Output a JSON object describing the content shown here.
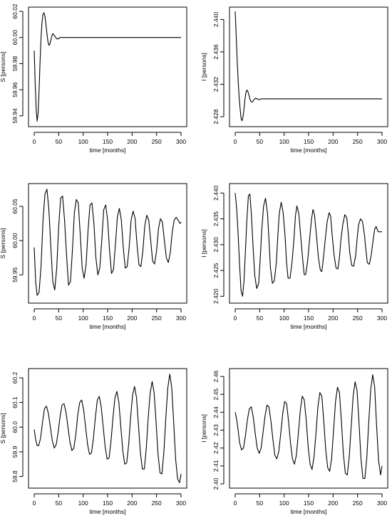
{
  "chart_data": [
    {
      "type": "line",
      "xlabel": "time [months]",
      "ylabel": "S [persons]",
      "xlim": [
        0,
        300
      ],
      "ylim": [
        59.935,
        60.02
      ],
      "xticks": [
        "0",
        "50",
        "100",
        "150",
        "200",
        "250",
        "300"
      ],
      "yticks": [
        "59.94",
        "59.96",
        "59.98",
        "60.00",
        "60.02"
      ],
      "series": [
        {
          "x": [
            0,
            2,
            4,
            6,
            8,
            10,
            12,
            14,
            16,
            18,
            20,
            22,
            24,
            26,
            28,
            30,
            32,
            34,
            36,
            38,
            40,
            42,
            44,
            46,
            48,
            50,
            52,
            54,
            56,
            58,
            60,
            65,
            70,
            75,
            80,
            100,
            150,
            200,
            250,
            300
          ],
          "values": [
            59.99,
            59.965,
            59.945,
            59.936,
            59.942,
            59.96,
            59.982,
            60.0,
            60.012,
            60.018,
            60.019,
            60.016,
            60.01,
            60.003,
            59.997,
            59.994,
            59.995,
            59.998,
            60.001,
            60.003,
            60.002,
            60.001,
            60.0,
            59.999,
            59.999,
            59.999,
            60.0,
            60.0,
            60.0,
            60.0,
            60.0,
            60.0,
            60.0,
            60.0,
            60.0,
            60.0,
            60.0,
            60.0,
            60.0,
            60.0
          ]
        }
      ]
    },
    {
      "type": "line",
      "xlabel": "time [months]",
      "ylabel": "I [persons]",
      "xlim": [
        0,
        300
      ],
      "ylim": [
        2.4273,
        2.441
      ],
      "xticks": [
        "0",
        "50",
        "100",
        "150",
        "200",
        "250",
        "300"
      ],
      "yticks": [
        "2.428",
        "2.432",
        "2.436",
        "2.440"
      ],
      "series": [
        {
          "x": [
            0,
            2,
            4,
            6,
            8,
            10,
            12,
            14,
            16,
            18,
            20,
            22,
            24,
            26,
            28,
            30,
            32,
            34,
            36,
            38,
            40,
            42,
            44,
            46,
            48,
            50,
            52,
            54,
            56,
            58,
            60,
            65,
            70,
            75,
            80,
            100,
            150,
            200,
            250,
            300
          ],
          "values": [
            2.441,
            2.438,
            2.435,
            2.4325,
            2.4305,
            2.429,
            2.4278,
            2.4275,
            2.428,
            2.429,
            2.4302,
            2.431,
            2.4313,
            2.4311,
            2.4307,
            2.4302,
            2.4299,
            2.4298,
            2.4299,
            2.4301,
            2.4302,
            2.4303,
            2.4302,
            2.4302,
            2.4301,
            2.4301,
            2.4302,
            2.4302,
            2.4302,
            2.4302,
            2.4302,
            2.4302,
            2.4302,
            2.4302,
            2.4302,
            2.4302,
            2.4302,
            2.4302,
            2.4302,
            2.4302
          ]
        }
      ]
    },
    {
      "type": "line",
      "xlabel": "time [months]",
      "ylabel": "S [persons]",
      "xlim": [
        0,
        300
      ],
      "ylim": [
        59.915,
        60.077
      ],
      "xticks": [
        "0",
        "50",
        "100",
        "150",
        "200",
        "250",
        "300"
      ],
      "yticks": [
        "59.95",
        "60.00",
        "60.05"
      ],
      "series": [
        {
          "x": [
            0,
            3,
            6,
            10,
            14,
            18,
            22,
            26,
            30,
            34,
            38,
            42,
            46,
            50,
            54,
            58,
            62,
            66,
            70,
            74,
            78,
            82,
            86,
            90,
            94,
            98,
            102,
            106,
            110,
            114,
            118,
            122,
            126,
            130,
            134,
            138,
            142,
            146,
            150,
            154,
            158,
            162,
            166,
            170,
            174,
            178,
            182,
            186,
            190,
            194,
            198,
            202,
            206,
            210,
            214,
            218,
            222,
            226,
            230,
            234,
            238,
            242,
            246,
            250,
            254,
            258,
            262,
            266,
            270,
            274,
            278,
            282,
            286,
            290,
            294,
            298,
            300
          ],
          "values": [
            59.99,
            59.94,
            59.92,
            59.925,
            59.963,
            60.03,
            60.068,
            60.075,
            60.045,
            59.99,
            59.94,
            59.928,
            59.96,
            60.02,
            60.062,
            60.065,
            60.03,
            59.98,
            59.935,
            59.94,
            59.985,
            60.04,
            60.06,
            60.055,
            60.01,
            59.96,
            59.945,
            59.965,
            60.015,
            60.052,
            60.055,
            60.025,
            59.975,
            59.95,
            59.96,
            60.0,
            60.045,
            60.052,
            60.03,
            59.985,
            59.952,
            59.958,
            59.995,
            60.035,
            60.047,
            60.03,
            59.99,
            59.96,
            59.962,
            59.99,
            60.03,
            60.043,
            60.033,
            59.995,
            59.965,
            59.962,
            59.985,
            60.022,
            60.037,
            60.03,
            60.0,
            59.97,
            59.966,
            59.985,
            60.018,
            60.032,
            60.027,
            60.0,
            59.975,
            59.968,
            59.982,
            60.012,
            60.03,
            60.034,
            60.03,
            60.025,
            60.027
          ]
        }
      ]
    },
    {
      "type": "line",
      "xlabel": "time [months]",
      "ylabel": "I [persons]",
      "xlim": [
        0,
        300
      ],
      "ylim": [
        2.4195,
        2.441
      ],
      "xticks": [
        "0",
        "50",
        "100",
        "150",
        "200",
        "250",
        "300"
      ],
      "yticks": [
        "2.420",
        "2.425",
        "2.430",
        "2.435",
        "2.440"
      ],
      "series": [
        {
          "x": [
            0,
            3,
            6,
            9,
            12,
            15,
            18,
            21,
            24,
            27,
            30,
            33,
            36,
            40,
            44,
            48,
            51,
            54,
            58,
            62,
            66,
            69,
            72,
            76,
            80,
            84,
            87,
            90,
            94,
            98,
            102,
            105,
            108,
            112,
            116,
            120,
            123,
            126,
            130,
            134,
            138,
            141,
            144,
            148,
            152,
            156,
            159,
            162,
            166,
            170,
            174,
            177,
            180,
            184,
            188,
            192,
            195,
            198,
            202,
            206,
            210,
            213,
            216,
            220,
            224,
            228,
            231,
            234,
            238,
            242,
            246,
            249,
            252,
            256,
            260,
            264,
            267,
            270,
            274,
            278,
            282,
            285,
            288,
            292,
            296,
            300
          ],
          "values": [
            2.44,
            2.437,
            2.432,
            2.426,
            2.421,
            2.42,
            2.423,
            2.429,
            2.435,
            2.4395,
            2.4398,
            2.436,
            2.4305,
            2.424,
            2.4215,
            2.4225,
            2.427,
            2.4325,
            2.4375,
            2.439,
            2.436,
            2.431,
            2.4255,
            2.4225,
            2.423,
            2.4265,
            2.4315,
            2.436,
            2.4382,
            2.4362,
            2.4315,
            2.4265,
            2.4235,
            2.4235,
            2.4265,
            2.431,
            2.4355,
            2.4375,
            2.436,
            2.4315,
            2.427,
            2.4242,
            2.4242,
            2.4268,
            2.431,
            2.435,
            2.4368,
            2.4358,
            2.4318,
            2.4275,
            2.425,
            2.4248,
            2.4272,
            2.431,
            2.4345,
            2.4362,
            2.4355,
            2.432,
            2.428,
            2.4255,
            2.4253,
            2.4275,
            2.431,
            2.434,
            2.4358,
            2.4352,
            2.4322,
            2.4285,
            2.426,
            2.4258,
            2.4278,
            2.431,
            2.4338,
            2.435,
            2.4345,
            2.432,
            2.429,
            2.4265,
            2.4262,
            2.428,
            2.431,
            2.433,
            2.4335,
            2.4325,
            2.4325,
            2.4325
          ]
        }
      ]
    },
    {
      "type": "line",
      "xlabel": "time [months]",
      "ylabel": "S [persons]",
      "xlim": [
        0,
        300
      ],
      "ylim": [
        59.77,
        60.22
      ],
      "xticks": [
        "0",
        "50",
        "100",
        "150",
        "200",
        "250",
        "300"
      ],
      "yticks": [
        "59.8",
        "59.9",
        "60.0",
        "60.1",
        "60.2"
      ],
      "series": [
        {
          "x": [
            0,
            3,
            6,
            9,
            13,
            17,
            21,
            25,
            29,
            33,
            37,
            41,
            45,
            49,
            53,
            57,
            61,
            65,
            69,
            73,
            77,
            81,
            85,
            89,
            93,
            97,
            101,
            105,
            109,
            113,
            117,
            121,
            125,
            129,
            133,
            137,
            141,
            145,
            149,
            153,
            157,
            161,
            165,
            169,
            173,
            177,
            181,
            185,
            189,
            193,
            197,
            201,
            205,
            209,
            213,
            217,
            221,
            225,
            229,
            233,
            237,
            241,
            245,
            249,
            253,
            257,
            261,
            265,
            269,
            273,
            277,
            281,
            285,
            289,
            293,
            297,
            300
          ],
          "values": [
            59.99,
            59.95,
            59.925,
            59.925,
            59.955,
            60.02,
            60.075,
            60.085,
            60.055,
            60.0,
            59.945,
            59.915,
            59.93,
            59.98,
            60.045,
            60.09,
            60.095,
            60.06,
            60.0,
            59.94,
            59.905,
            59.915,
            59.97,
            60.05,
            60.1,
            60.11,
            60.07,
            60.0,
            59.93,
            59.89,
            59.895,
            59.955,
            60.04,
            60.11,
            60.125,
            60.08,
            60.0,
            59.92,
            59.87,
            59.875,
            59.945,
            60.04,
            60.12,
            60.145,
            60.1,
            60.0,
            59.905,
            59.85,
            59.855,
            59.93,
            60.04,
            60.13,
            60.165,
            60.12,
            60.01,
            59.895,
            59.83,
            59.83,
            59.915,
            60.04,
            60.14,
            60.185,
            60.14,
            60.02,
            59.89,
            59.815,
            59.81,
            59.9,
            60.04,
            60.16,
            60.215,
            60.16,
            60.02,
            59.87,
            59.79,
            59.775,
            59.81
          ]
        }
      ]
    },
    {
      "type": "line",
      "xlabel": "time [months]",
      "ylabel": "I [persons]",
      "xlim": [
        0,
        300
      ],
      "ylim": [
        2.4,
        2.462
      ],
      "xticks": [
        "0",
        "50",
        "100",
        "150",
        "200",
        "250",
        "300"
      ],
      "yticks": [
        "2.40",
        "2.41",
        "2.42",
        "2.43",
        "2.44",
        "2.45",
        "2.46"
      ],
      "series": [
        {
          "x": [
            0,
            3,
            6,
            9,
            13,
            17,
            21,
            25,
            29,
            33,
            37,
            41,
            45,
            49,
            53,
            57,
            61,
            65,
            69,
            73,
            77,
            81,
            85,
            89,
            93,
            97,
            101,
            105,
            109,
            113,
            117,
            121,
            125,
            129,
            133,
            137,
            141,
            145,
            149,
            153,
            157,
            161,
            165,
            169,
            173,
            177,
            181,
            185,
            189,
            193,
            197,
            201,
            205,
            209,
            213,
            217,
            221,
            225,
            229,
            233,
            237,
            241,
            245,
            249,
            253,
            257,
            261,
            265,
            269,
            273,
            277,
            281,
            285,
            289,
            293,
            297,
            300
          ],
          "values": [
            2.44,
            2.436,
            2.43,
            2.423,
            2.419,
            2.42,
            2.427,
            2.436,
            2.442,
            2.443,
            2.437,
            2.428,
            2.42,
            2.417,
            2.42,
            2.429,
            2.438,
            2.444,
            2.443,
            2.435,
            2.425,
            2.416,
            2.414,
            2.418,
            2.428,
            2.439,
            2.446,
            2.445,
            2.435,
            2.423,
            2.414,
            2.411,
            2.416,
            2.428,
            2.441,
            2.449,
            2.447,
            2.436,
            2.421,
            2.411,
            2.408,
            2.415,
            2.428,
            2.443,
            2.451,
            2.449,
            2.435,
            2.419,
            2.409,
            2.407,
            2.414,
            2.43,
            2.446,
            2.454,
            2.451,
            2.435,
            2.417,
            2.406,
            2.405,
            2.415,
            2.432,
            2.449,
            2.457,
            2.452,
            2.434,
            2.414,
            2.403,
            2.403,
            2.415,
            2.435,
            2.453,
            2.461,
            2.454,
            2.432,
            2.413,
            2.405,
            2.41
          ]
        }
      ]
    }
  ]
}
